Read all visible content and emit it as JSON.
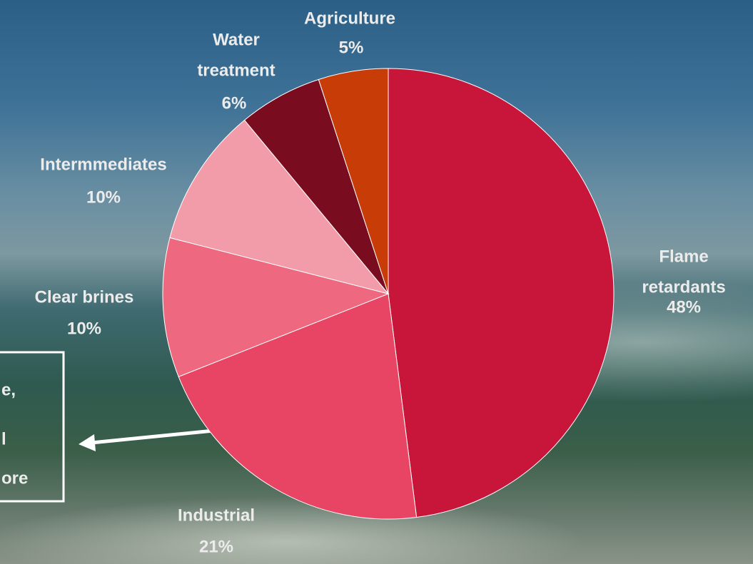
{
  "chart_data": {
    "type": "pie",
    "categories": [
      "Flame\nretardants",
      "Industrial",
      "Clear brines",
      "Intermmediates",
      "Water\ntreatment",
      "Agriculture"
    ],
    "values": [
      48,
      21,
      10,
      10,
      6,
      5
    ],
    "value_labels": [
      "48%",
      "21%",
      "10%",
      "10%",
      "6%",
      "5%"
    ],
    "colors": [
      "#c8153a",
      "#e84463",
      "#ee6880",
      "#f39ca9",
      "#7a0c20",
      "#c83c08"
    ],
    "annotation_fragments": [
      "e,",
      "l",
      "ore"
    ]
  }
}
